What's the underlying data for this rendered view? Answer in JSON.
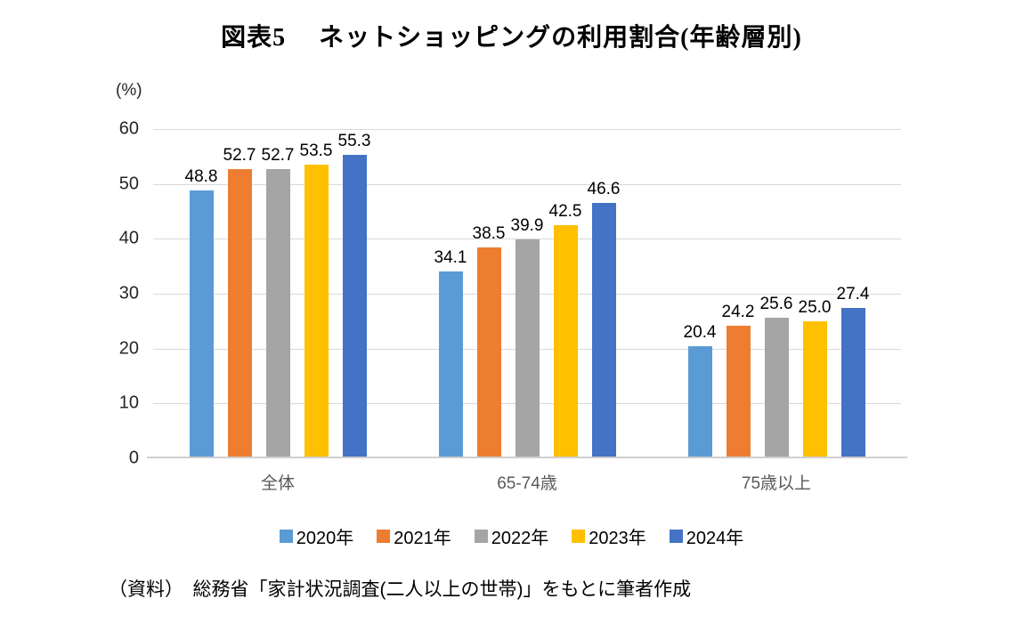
{
  "title": "図表5　 ネットショッピングの利用割合(年齢層別)",
  "y_axis_unit": "(%)",
  "source_note": "（資料）　総務省「家計状況調査(二人以上の世帯)」をもとに筆者作成",
  "chart_data": {
    "type": "bar",
    "title": "図表5 ネットショッピングの利用割合(年齢層別)",
    "categories": [
      "全体",
      "65-74歳",
      "75歳以上"
    ],
    "series": [
      {
        "name": "2020年",
        "color": "#5b9bd5",
        "values": [
          48.8,
          34.1,
          20.4
        ]
      },
      {
        "name": "2021年",
        "color": "#ed7d31",
        "values": [
          52.7,
          38.5,
          24.2
        ]
      },
      {
        "name": "2022年",
        "color": "#a5a5a5",
        "values": [
          52.7,
          39.9,
          25.6
        ]
      },
      {
        "name": "2023年",
        "color": "#ffc000",
        "values": [
          53.5,
          42.5,
          25.0
        ]
      },
      {
        "name": "2024年",
        "color": "#4472c4",
        "values": [
          55.3,
          46.6,
          27.4
        ]
      }
    ],
    "xlabel": "",
    "ylabel": "(%)",
    "ylim": [
      0,
      60
    ],
    "yticks": [
      0,
      10,
      20,
      30,
      40,
      50,
      60
    ],
    "grid": true,
    "data_labels": true,
    "data_label_decimals": 1,
    "legend_position": "bottom",
    "gridline_color": "#d9d9d9",
    "axis_line_color": "#d0cece"
  }
}
